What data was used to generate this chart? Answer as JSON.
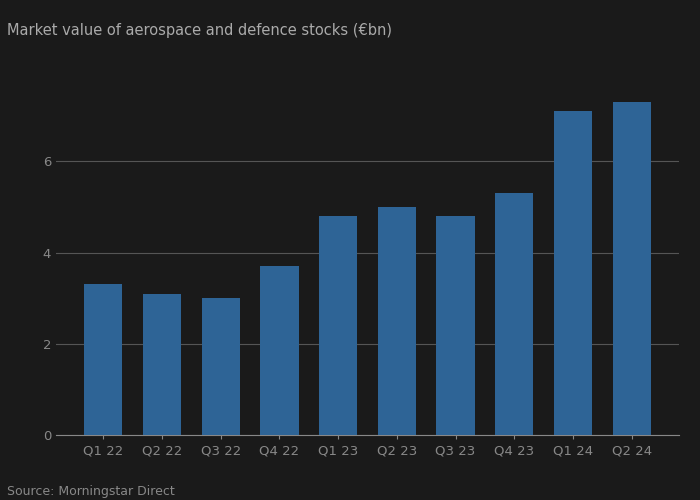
{
  "categories": [
    "Q1 22",
    "Q2 22",
    "Q3 22",
    "Q4 22",
    "Q1 23",
    "Q2 23",
    "Q3 23",
    "Q4 23",
    "Q1 24",
    "Q2 24"
  ],
  "values": [
    3.3,
    3.1,
    3.0,
    3.7,
    4.8,
    5.0,
    4.8,
    5.3,
    7.1,
    7.3
  ],
  "bar_color": "#2E6496",
  "title": "Market value of aerospace and defence stocks (€bn)",
  "title_fontsize": 10.5,
  "ylim": [
    0,
    8
  ],
  "yticks": [
    0,
    2,
    4,
    6
  ],
  "source_text": "Source: Morningstar Direct",
  "background_color": "#1a1a1a",
  "plot_bg_color": "#1a1a1a",
  "grid_color": "#555555",
  "title_color": "#aaaaaa",
  "tick_color": "#888888",
  "source_color": "#888888",
  "tick_label_fontsize": 9.5,
  "source_fontsize": 9
}
